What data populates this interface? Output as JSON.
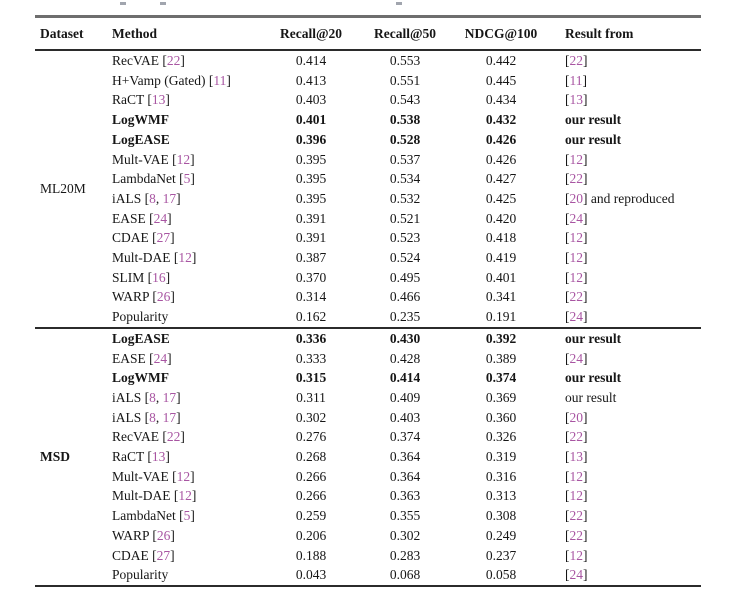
{
  "table": {
    "headers": {
      "dataset": "Dataset",
      "method": "Method",
      "recall20": "Recall@20",
      "recall50": "Recall@50",
      "ndcg100": "NDCG@100",
      "result_from": "Result from"
    },
    "cite_color": "#a855a2",
    "groups": [
      {
        "dataset": "ML20M",
        "rows": [
          {
            "method": "RecVAE",
            "cites": [
              "22"
            ],
            "bold": false,
            "recall20": "0.414",
            "recall50": "0.553",
            "ndcg100": "0.442",
            "from_cites": [
              "22"
            ],
            "from_text": ""
          },
          {
            "method": "H+Vamp (Gated)",
            "cites": [
              "11"
            ],
            "bold": false,
            "recall20": "0.413",
            "recall50": "0.551",
            "ndcg100": "0.445",
            "from_cites": [
              "11"
            ],
            "from_text": ""
          },
          {
            "method": "RaCT",
            "cites": [
              "13"
            ],
            "bold": false,
            "recall20": "0.403",
            "recall50": "0.543",
            "ndcg100": "0.434",
            "from_cites": [
              "13"
            ],
            "from_text": ""
          },
          {
            "method": "LogWMF",
            "cites": [],
            "bold": true,
            "recall20": "0.401",
            "recall50": "0.538",
            "ndcg100": "0.432",
            "from_cites": [],
            "from_text": "our result"
          },
          {
            "method": "LogEASE",
            "cites": [],
            "bold": true,
            "recall20": "0.396",
            "recall50": "0.528",
            "ndcg100": "0.426",
            "from_cites": [],
            "from_text": "our result"
          },
          {
            "method": "Mult-VAE",
            "cites": [
              "12"
            ],
            "bold": false,
            "recall20": "0.395",
            "recall50": "0.537",
            "ndcg100": "0.426",
            "from_cites": [
              "12"
            ],
            "from_text": ""
          },
          {
            "method": "LambdaNet",
            "cites": [
              "5"
            ],
            "bold": false,
            "recall20": "0.395",
            "recall50": "0.534",
            "ndcg100": "0.427",
            "from_cites": [
              "22"
            ],
            "from_text": ""
          },
          {
            "method": "iALS",
            "cites": [
              "8",
              "17"
            ],
            "bold": false,
            "recall20": "0.395",
            "recall50": "0.532",
            "ndcg100": "0.425",
            "from_cites": [
              "20"
            ],
            "from_text": " and reproduced"
          },
          {
            "method": "EASE",
            "cites": [
              "24"
            ],
            "bold": false,
            "recall20": "0.391",
            "recall50": "0.521",
            "ndcg100": "0.420",
            "from_cites": [
              "24"
            ],
            "from_text": ""
          },
          {
            "method": "CDAE",
            "cites": [
              "27"
            ],
            "bold": false,
            "recall20": "0.391",
            "recall50": "0.523",
            "ndcg100": "0.418",
            "from_cites": [
              "12"
            ],
            "from_text": ""
          },
          {
            "method": "Mult-DAE",
            "cites": [
              "12"
            ],
            "bold": false,
            "recall20": "0.387",
            "recall50": "0.524",
            "ndcg100": "0.419",
            "from_cites": [
              "12"
            ],
            "from_text": ""
          },
          {
            "method": "SLIM",
            "cites": [
              "16"
            ],
            "bold": false,
            "recall20": "0.370",
            "recall50": "0.495",
            "ndcg100": "0.401",
            "from_cites": [
              "12"
            ],
            "from_text": ""
          },
          {
            "method": "WARP",
            "cites": [
              "26"
            ],
            "bold": false,
            "recall20": "0.314",
            "recall50": "0.466",
            "ndcg100": "0.341",
            "from_cites": [
              "22"
            ],
            "from_text": ""
          },
          {
            "method": "Popularity",
            "cites": [],
            "bold": false,
            "recall20": "0.162",
            "recall50": "0.235",
            "ndcg100": "0.191",
            "from_cites": [
              "24"
            ],
            "from_text": ""
          }
        ]
      },
      {
        "dataset": "MSD",
        "rows": [
          {
            "method": "LogEASE",
            "cites": [],
            "bold": true,
            "recall20": "0.336",
            "recall50": "0.430",
            "ndcg100": "0.392",
            "from_cites": [],
            "from_text": "our result"
          },
          {
            "method": "EASE",
            "cites": [
              "24"
            ],
            "bold": false,
            "recall20": "0.333",
            "recall50": "0.428",
            "ndcg100": "0.389",
            "from_cites": [
              "24"
            ],
            "from_text": ""
          },
          {
            "method": "LogWMF",
            "cites": [],
            "bold": true,
            "recall20": "0.315",
            "recall50": "0.414",
            "ndcg100": "0.374",
            "from_cites": [],
            "from_text": "our result"
          },
          {
            "method": "iALS",
            "cites": [
              "8",
              "17"
            ],
            "bold": false,
            "recall20": "0.311",
            "recall50": "0.409",
            "ndcg100": "0.369",
            "from_cites": [],
            "from_text": "our result"
          },
          {
            "method": "iALS",
            "cites": [
              "8",
              "17"
            ],
            "bold": false,
            "recall20": "0.302",
            "recall50": "0.403",
            "ndcg100": "0.360",
            "from_cites": [
              "20"
            ],
            "from_text": ""
          },
          {
            "method": "RecVAE",
            "cites": [
              "22"
            ],
            "bold": false,
            "recall20": "0.276",
            "recall50": "0.374",
            "ndcg100": "0.326",
            "from_cites": [
              "22"
            ],
            "from_text": ""
          },
          {
            "method": "RaCT",
            "cites": [
              "13"
            ],
            "bold": false,
            "recall20": "0.268",
            "recall50": "0.364",
            "ndcg100": "0.319",
            "from_cites": [
              "13"
            ],
            "from_text": ""
          },
          {
            "method": "Mult-VAE",
            "cites": [
              "12"
            ],
            "bold": false,
            "recall20": "0.266",
            "recall50": "0.364",
            "ndcg100": "0.316",
            "from_cites": [
              "12"
            ],
            "from_text": ""
          },
          {
            "method": "Mult-DAE",
            "cites": [
              "12"
            ],
            "bold": false,
            "recall20": "0.266",
            "recall50": "0.363",
            "ndcg100": "0.313",
            "from_cites": [
              "12"
            ],
            "from_text": ""
          },
          {
            "method": "LambdaNet",
            "cites": [
              "5"
            ],
            "bold": false,
            "recall20": "0.259",
            "recall50": "0.355",
            "ndcg100": "0.308",
            "from_cites": [
              "22"
            ],
            "from_text": ""
          },
          {
            "method": "WARP",
            "cites": [
              "26"
            ],
            "bold": false,
            "recall20": "0.206",
            "recall50": "0.302",
            "ndcg100": "0.249",
            "from_cites": [
              "22"
            ],
            "from_text": ""
          },
          {
            "method": "CDAE",
            "cites": [
              "27"
            ],
            "bold": false,
            "recall20": "0.188",
            "recall50": "0.283",
            "ndcg100": "0.237",
            "from_cites": [
              "12"
            ],
            "from_text": ""
          },
          {
            "method": "Popularity",
            "cites": [],
            "bold": false,
            "recall20": "0.043",
            "recall50": "0.068",
            "ndcg100": "0.058",
            "from_cites": [
              "24"
            ],
            "from_text": ""
          }
        ]
      }
    ]
  }
}
